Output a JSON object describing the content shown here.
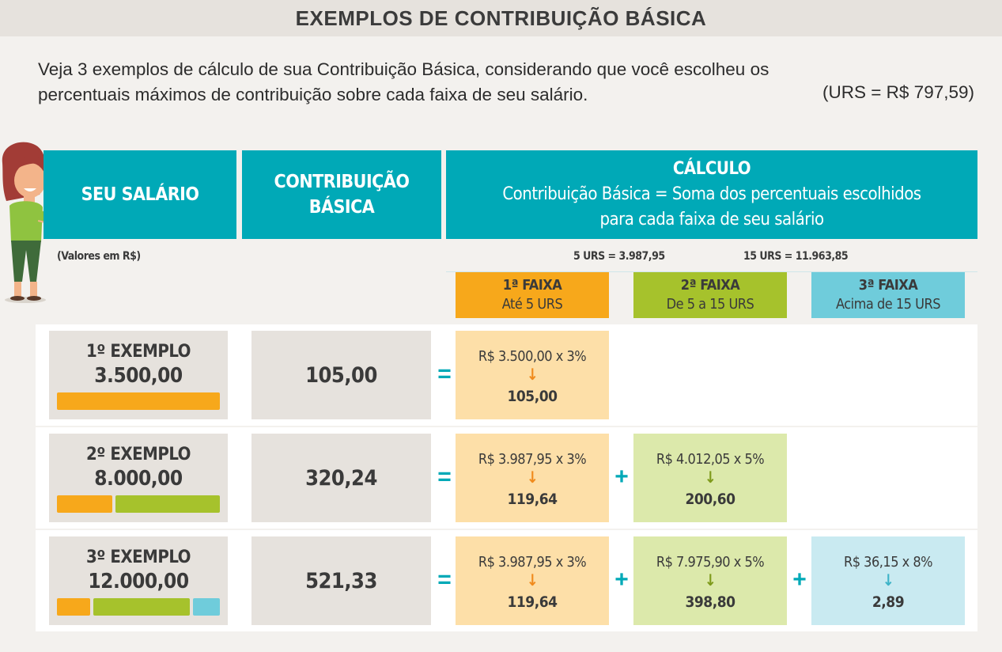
{
  "header": {
    "title": "EXEMPLOS DE CONTRIBUIÇÃO BÁSICA"
  },
  "intro": {
    "line1": "Veja 3 exemplos de cálculo de sua Contribuição Básica, considerando que você escolheu os",
    "line2": "percentuais máximos de contribuição sobre cada faixa de seu salário.",
    "urs_note": "(URS = R$ 797,59)"
  },
  "table": {
    "col_salary": "SEU SALÁRIO",
    "col_contrib_line1": "CONTRIBUIÇÃO",
    "col_contrib_line2": "BÁSICA",
    "col_calc_title": "CÁLCULO",
    "col_calc_sub1": "Contribuição Básica = Soma dos percentuais escolhidos",
    "col_calc_sub2": "para cada faixa de seu salário",
    "values_note": "(Valores em R$)",
    "urs5": "5 URS = 3.987,95",
    "urs15": "15 URS = 11.963,85",
    "faixas": [
      {
        "title": "1ª FAIXA",
        "sub": "Até 5 URS",
        "color": "#f7a81b"
      },
      {
        "title": "2ª FAIXA",
        "sub": "De 5 a 15 URS",
        "color": "#a6c22c"
      },
      {
        "title": "3ª FAIXA",
        "sub": "Acima de 15 URS",
        "color": "#6fccdb"
      }
    ]
  },
  "examples": [
    {
      "name": "1º EXEMPLO",
      "salary": "3.500,00",
      "contribution": "105,00",
      "equals": "=",
      "calcs": [
        {
          "formula": "R$ 3.500,00 x 3%",
          "arrow": "↓",
          "result": "105,00"
        }
      ]
    },
    {
      "name": "2º EXEMPLO",
      "salary": "8.000,00",
      "contribution": "320,24",
      "equals": "=",
      "plus": "+",
      "calcs": [
        {
          "formula": "R$ 3.987,95 x 3%",
          "arrow": "↓",
          "result": "119,64"
        },
        {
          "formula": "R$ 4.012,05 x 5%",
          "arrow": "↓",
          "result": "200,60"
        }
      ]
    },
    {
      "name": "3º EXEMPLO",
      "salary": "12.000,00",
      "contribution": "521,33",
      "equals": "=",
      "plus": "+",
      "calcs": [
        {
          "formula": "R$ 3.987,95 x 3%",
          "arrow": "↓",
          "result": "119,64"
        },
        {
          "formula": "R$ 7.975,90 x 5%",
          "arrow": "↓",
          "result": "398,80"
        },
        {
          "formula": "R$ 36,15 x 8%",
          "arrow": "↓",
          "result": "2,89"
        }
      ]
    }
  ],
  "icons": {
    "mascot": "woman-mascot-illustration",
    "arrow": "arrow-down-icon"
  }
}
